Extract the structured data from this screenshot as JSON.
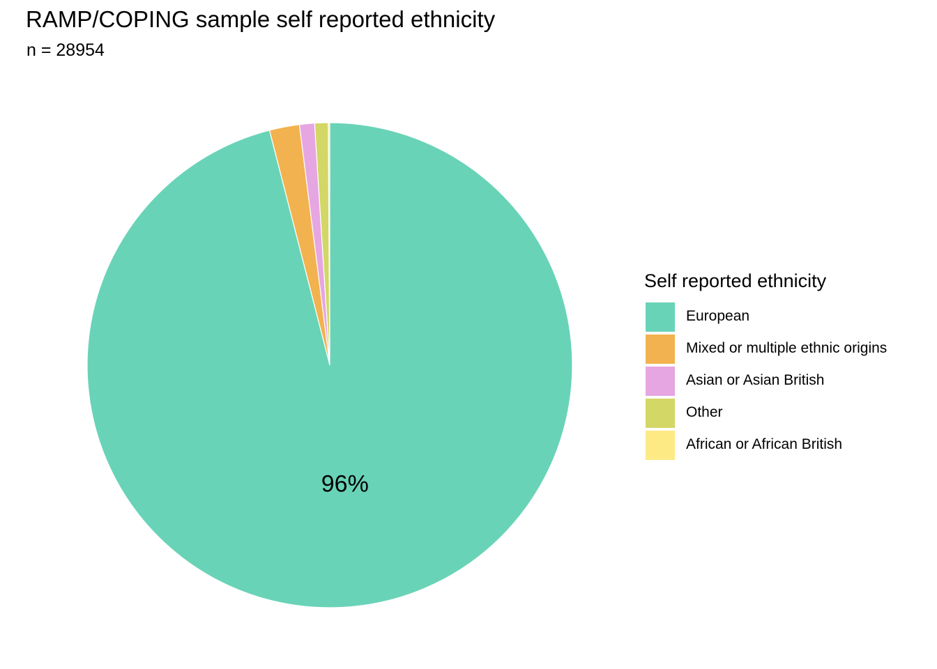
{
  "chart_data": {
    "type": "pie",
    "title": "RAMP/COPING sample self reported ethnicity",
    "subtitle": "n = 28954",
    "legend_title": "Self reported ethnicity",
    "legend_position": "right",
    "categories": [
      "European",
      "Mixed or multiple ethnic origins",
      "Asian or Asian British",
      "Other",
      "African or African British"
    ],
    "values": [
      96.0,
      2.0,
      1.0,
      0.9,
      0.1
    ],
    "value_unit": "percent",
    "colors": [
      "#69D3B7",
      "#F2B24F",
      "#E6A6E1",
      "#D3D765",
      "#FDEA85"
    ],
    "data_labels": [
      {
        "category": "European",
        "text": "96%"
      }
    ],
    "direction": "counterclockwise from top, in reverse legend order"
  }
}
